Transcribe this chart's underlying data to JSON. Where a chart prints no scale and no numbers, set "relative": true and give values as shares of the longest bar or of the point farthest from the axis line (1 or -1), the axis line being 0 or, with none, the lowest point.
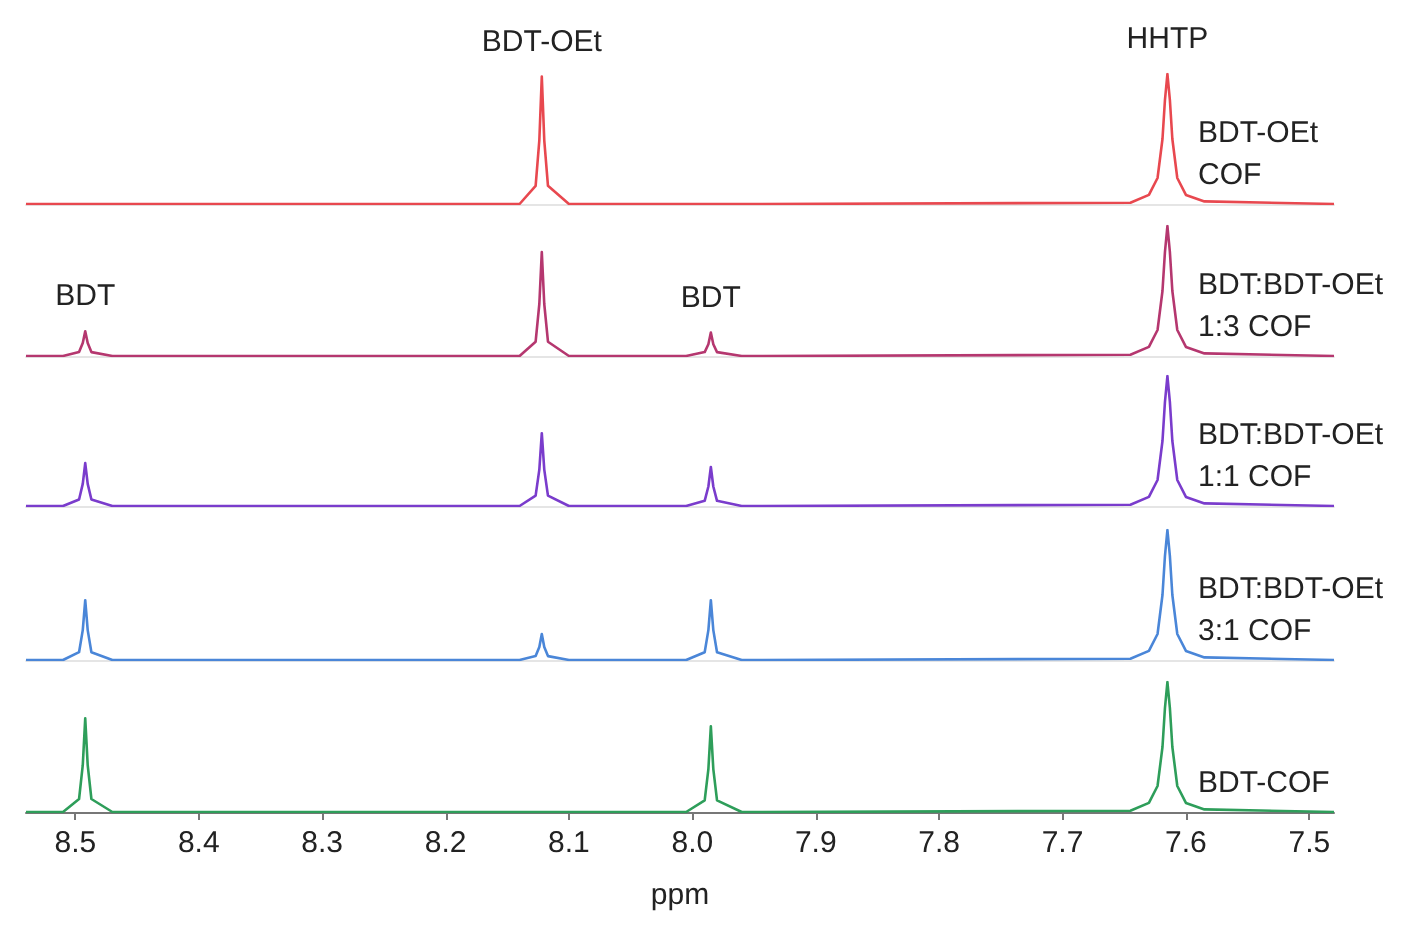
{
  "chart_data": [
    {
      "type": "line",
      "relative": true,
      "xlim": [
        8.54,
        7.48
      ],
      "tick_labels": false,
      "x": [
        8.54,
        8.51,
        8.497,
        8.494,
        8.492,
        8.49,
        8.487,
        8.47,
        8.14,
        8.127,
        8.124,
        8.122,
        8.12,
        8.117,
        8.1,
        8.005,
        7.99,
        7.987,
        7.985,
        7.983,
        7.98,
        7.96,
        7.645,
        7.63,
        7.623,
        7.619,
        7.617,
        7.615,
        7.613,
        7.611,
        7.607,
        7.6,
        7.585,
        7.48
      ],
      "series": [
        {
          "name": "BDT-OEt COF",
          "color": "#e8484f",
          "values": [
            0,
            0,
            0,
            0,
            0,
            0,
            0,
            0,
            0,
            0.14,
            0.49,
            0.98,
            0.49,
            0.14,
            0,
            0,
            0,
            0,
            0,
            0,
            0,
            0,
            0.01,
            0.07,
            0.2,
            0.5,
            0.8,
            1,
            0.8,
            0.5,
            0.2,
            0.07,
            0.02,
            0
          ]
        }
      ],
      "annotations": [
        {
          "text": "BDT-OEt",
          "x": 8.122,
          "y": 0.98
        },
        {
          "text": "HHTP",
          "x": 7.615,
          "y": 1
        }
      ]
    },
    {
      "type": "line",
      "relative": true,
      "xlim": [
        8.54,
        7.48
      ],
      "tick_labels": false,
      "x": [
        8.54,
        8.51,
        8.497,
        8.494,
        8.492,
        8.49,
        8.487,
        8.47,
        8.14,
        8.127,
        8.124,
        8.122,
        8.12,
        8.117,
        8.1,
        8.005,
        7.99,
        7.987,
        7.985,
        7.983,
        7.98,
        7.96,
        7.645,
        7.63,
        7.623,
        7.619,
        7.617,
        7.615,
        7.613,
        7.611,
        7.607,
        7.6,
        7.585,
        7.48
      ],
      "series": [
        {
          "name": "BDT:BDT-OEt 1:3 COF",
          "color": "#b5376f",
          "values": [
            0,
            0,
            0.03,
            0.1,
            0.19,
            0.1,
            0.03,
            0,
            0,
            0.11,
            0.4,
            0.8,
            0.4,
            0.11,
            0,
            0,
            0.03,
            0.09,
            0.18,
            0.09,
            0.03,
            0,
            0.01,
            0.07,
            0.2,
            0.5,
            0.8,
            1,
            0.8,
            0.5,
            0.2,
            0.07,
            0.02,
            0
          ]
        }
      ],
      "annotations": [
        {
          "text": "BDT",
          "x": 8.492,
          "y": 0.19
        },
        {
          "text": "BDT",
          "x": 7.985,
          "y": 0.18
        }
      ]
    },
    {
      "type": "line",
      "relative": true,
      "xlim": [
        8.54,
        7.48
      ],
      "tick_labels": false,
      "x": [
        8.54,
        8.51,
        8.497,
        8.494,
        8.492,
        8.49,
        8.487,
        8.47,
        8.14,
        8.127,
        8.124,
        8.122,
        8.12,
        8.117,
        8.1,
        8.005,
        7.99,
        7.987,
        7.985,
        7.983,
        7.98,
        7.96,
        7.645,
        7.63,
        7.623,
        7.619,
        7.617,
        7.615,
        7.613,
        7.611,
        7.607,
        7.6,
        7.585,
        7.48
      ],
      "series": [
        {
          "name": "BDT:BDT-OEt 1:1 COF",
          "color": "#7a3ccc",
          "values": [
            0,
            0,
            0.05,
            0.17,
            0.33,
            0.17,
            0.05,
            0,
            0,
            0.08,
            0.28,
            0.56,
            0.28,
            0.08,
            0,
            0,
            0.04,
            0.15,
            0.3,
            0.15,
            0.04,
            0,
            0.01,
            0.07,
            0.2,
            0.5,
            0.8,
            1,
            0.8,
            0.5,
            0.2,
            0.07,
            0.02,
            0
          ]
        }
      ]
    },
    {
      "type": "line",
      "relative": true,
      "xlim": [
        8.54,
        7.48
      ],
      "tick_labels": false,
      "x": [
        8.54,
        8.51,
        8.497,
        8.494,
        8.492,
        8.49,
        8.487,
        8.47,
        8.14,
        8.127,
        8.124,
        8.122,
        8.12,
        8.117,
        8.1,
        8.005,
        7.99,
        7.987,
        7.985,
        7.983,
        7.98,
        7.96,
        7.645,
        7.63,
        7.623,
        7.619,
        7.617,
        7.615,
        7.613,
        7.611,
        7.607,
        7.6,
        7.585,
        7.48
      ],
      "series": [
        {
          "name": "BDT:BDT-OEt 3:1 COF",
          "color": "#4a86d8",
          "values": [
            0,
            0,
            0.06,
            0.23,
            0.46,
            0.23,
            0.06,
            0,
            0,
            0.03,
            0.1,
            0.2,
            0.1,
            0.03,
            0,
            0,
            0.06,
            0.23,
            0.46,
            0.23,
            0.06,
            0,
            0.01,
            0.07,
            0.2,
            0.5,
            0.8,
            1,
            0.8,
            0.5,
            0.2,
            0.07,
            0.02,
            0
          ]
        }
      ]
    },
    {
      "type": "line",
      "relative": true,
      "xlim": [
        8.54,
        7.48
      ],
      "xticks": [
        8.5,
        8.4,
        8.3,
        8.2,
        8.1,
        {
          "value": 8,
          "label": "8.0"
        },
        7.9,
        7.8,
        7.7,
        7.6,
        7.5
      ],
      "tick_labels": "x",
      "xlabel": "ppm",
      "x": [
        8.54,
        8.51,
        8.497,
        8.494,
        8.492,
        8.49,
        8.487,
        8.47,
        8.14,
        8.127,
        8.124,
        8.122,
        8.12,
        8.117,
        8.1,
        8.005,
        7.99,
        7.987,
        7.985,
        7.983,
        7.98,
        7.96,
        7.645,
        7.63,
        7.623,
        7.619,
        7.617,
        7.615,
        7.613,
        7.611,
        7.607,
        7.6,
        7.585,
        7.48
      ],
      "series": [
        {
          "name": "BDT-COF",
          "color": "#2e9e5a",
          "values": [
            0,
            0,
            0.1,
            0.36,
            0.72,
            0.36,
            0.1,
            0,
            0,
            0,
            0,
            0,
            0,
            0,
            0,
            0,
            0.09,
            0.33,
            0.66,
            0.33,
            0.09,
            0,
            0.01,
            0.07,
            0.2,
            0.5,
            0.8,
            1,
            0.8,
            0.5,
            0.2,
            0.07,
            0.02,
            0
          ]
        }
      ]
    }
  ]
}
